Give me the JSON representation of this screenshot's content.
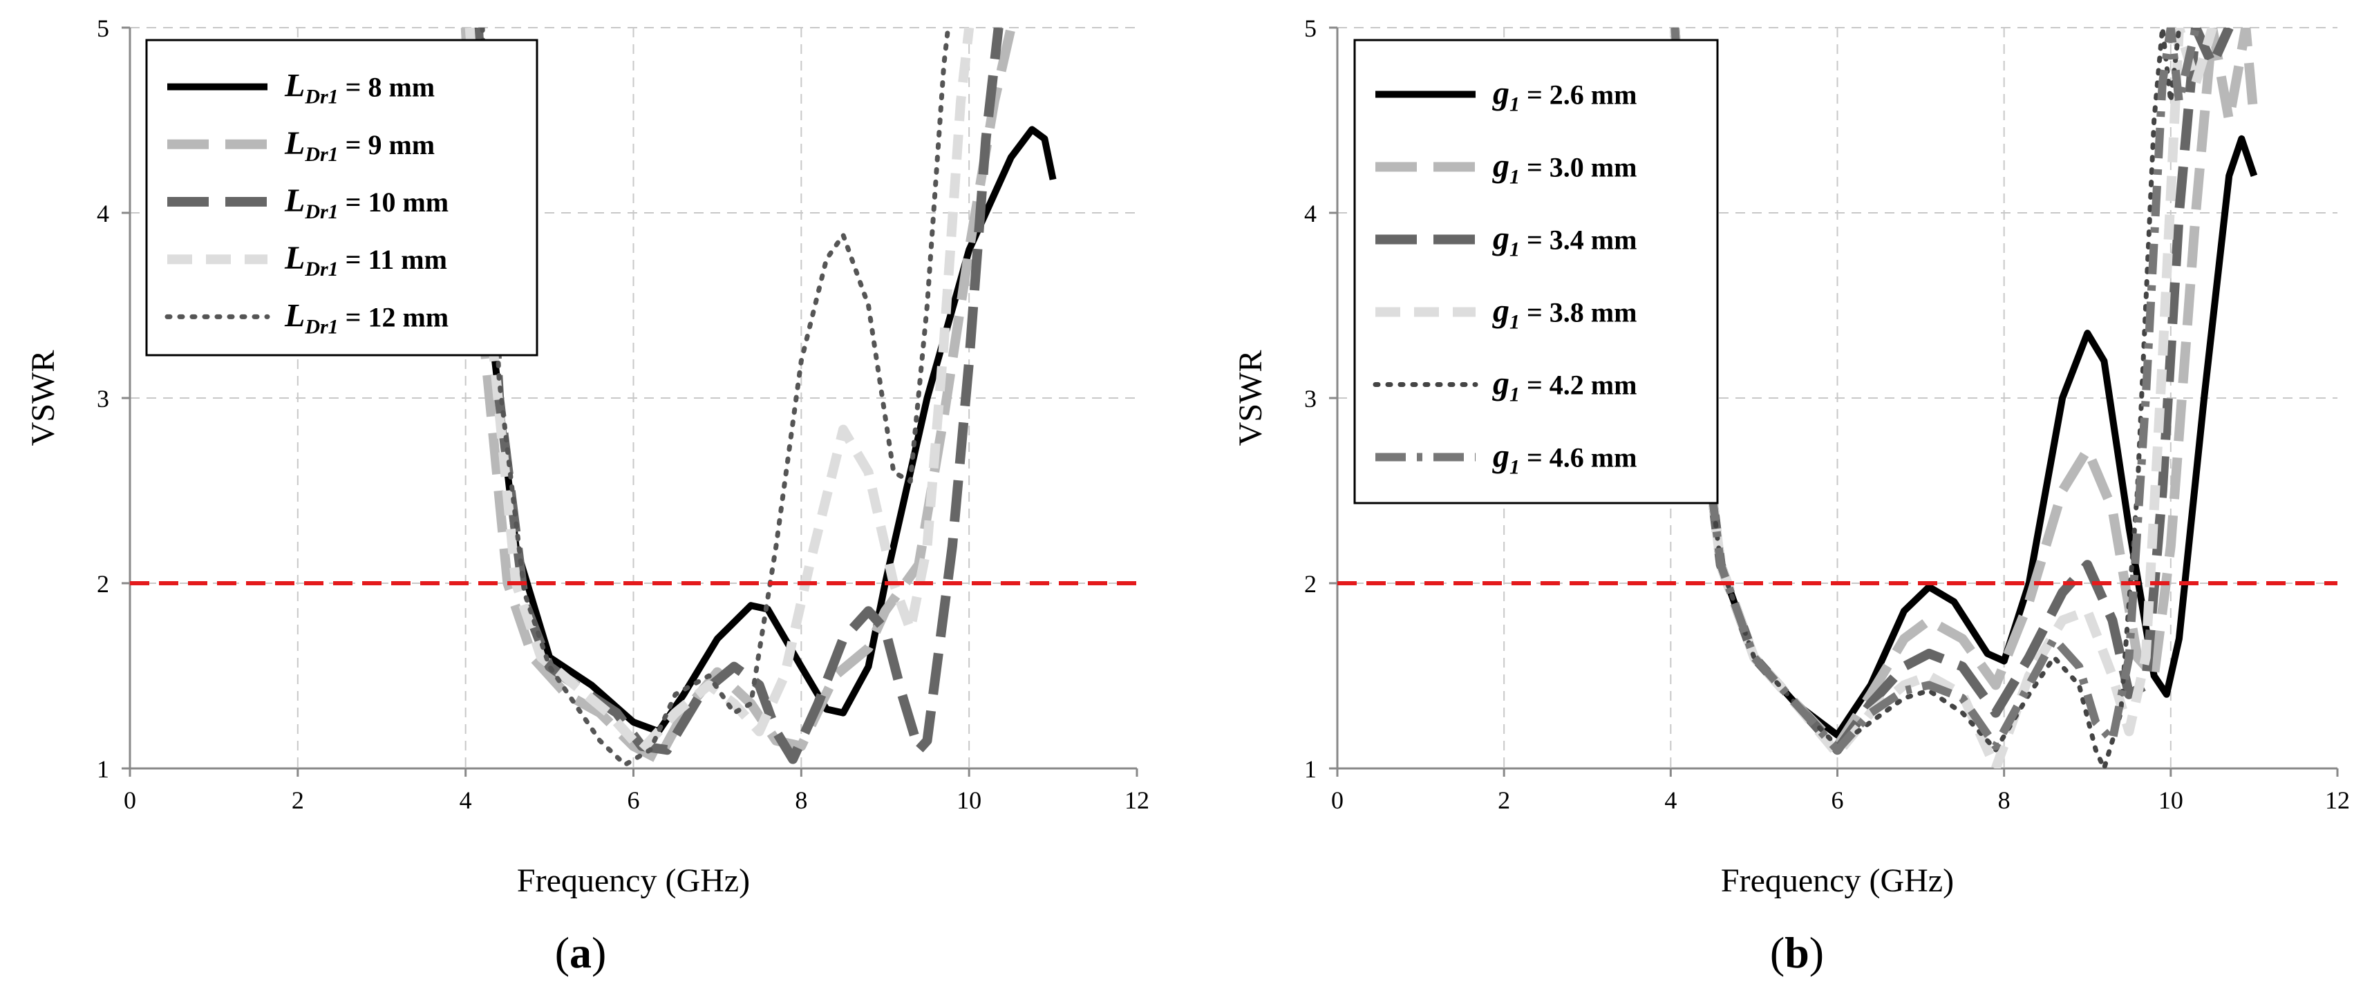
{
  "chart_data": [
    {
      "type": "line",
      "panel_label": "a",
      "xlabel": "Frequency (GHz)",
      "ylabel": "VSWR",
      "xlim": [
        0,
        12
      ],
      "ylim": [
        1,
        5
      ],
      "xticks": [
        "0",
        "2",
        "4",
        "6",
        "8",
        "10",
        "12"
      ],
      "yticks": [
        "1",
        "2",
        "3",
        "4",
        "5"
      ],
      "grid": true,
      "legend_position": "top-left",
      "threshold": {
        "y": 2,
        "color": "#e41a1c",
        "style": "dashed"
      },
      "series": [
        {
          "name": "8 mm",
          "legend_var": "L",
          "legend_sub": "Dr1",
          "color": "#000000",
          "dash": "solid",
          "points": [
            [
              4.1,
              5.0
            ],
            [
              4.3,
              3.4
            ],
            [
              4.6,
              2.2
            ],
            [
              5.0,
              1.6
            ],
            [
              5.5,
              1.45
            ],
            [
              6.0,
              1.25
            ],
            [
              6.3,
              1.2
            ],
            [
              6.6,
              1.4
            ],
            [
              7.0,
              1.7
            ],
            [
              7.4,
              1.88
            ],
            [
              7.6,
              1.86
            ],
            [
              8.0,
              1.55
            ],
            [
              8.3,
              1.32
            ],
            [
              8.5,
              1.3
            ],
            [
              8.8,
              1.55
            ],
            [
              9.0,
              2.0
            ],
            [
              9.5,
              3.0
            ],
            [
              10.0,
              3.8
            ],
            [
              10.5,
              4.3
            ],
            [
              10.75,
              4.45
            ],
            [
              10.9,
              4.4
            ],
            [
              11.0,
              4.18
            ]
          ]
        },
        {
          "name": "9 mm",
          "legend_var": "L",
          "legend_sub": "Dr1",
          "color": "#b8b8b8",
          "dash": "long",
          "points": [
            [
              4.0,
              5.0
            ],
            [
              4.2,
              3.4
            ],
            [
              4.5,
              2.0
            ],
            [
              4.8,
              1.6
            ],
            [
              5.2,
              1.4
            ],
            [
              5.6,
              1.3
            ],
            [
              6.0,
              1.12
            ],
            [
              6.3,
              1.05
            ],
            [
              6.6,
              1.3
            ],
            [
              7.0,
              1.52
            ],
            [
              7.4,
              1.35
            ],
            [
              7.7,
              1.15
            ],
            [
              8.0,
              1.12
            ],
            [
              8.4,
              1.5
            ],
            [
              8.8,
              1.65
            ],
            [
              9.0,
              1.85
            ],
            [
              9.4,
              2.1
            ],
            [
              9.7,
              2.9
            ],
            [
              10.0,
              3.8
            ],
            [
              10.3,
              4.6
            ],
            [
              10.5,
              5.0
            ]
          ]
        },
        {
          "name": "10 mm",
          "legend_var": "L",
          "legend_sub": "Dr1",
          "color": "#666666",
          "dash": "long",
          "points": [
            [
              4.15,
              5.0
            ],
            [
              4.4,
              3.0
            ],
            [
              4.7,
              1.9
            ],
            [
              5.0,
              1.55
            ],
            [
              5.4,
              1.42
            ],
            [
              5.8,
              1.3
            ],
            [
              6.1,
              1.12
            ],
            [
              6.4,
              1.1
            ],
            [
              6.8,
              1.4
            ],
            [
              7.2,
              1.55
            ],
            [
              7.5,
              1.45
            ],
            [
              7.7,
              1.2
            ],
            [
              7.9,
              1.05
            ],
            [
              8.2,
              1.35
            ],
            [
              8.5,
              1.7
            ],
            [
              8.8,
              1.85
            ],
            [
              9.0,
              1.75
            ],
            [
              9.2,
              1.4
            ],
            [
              9.4,
              1.1
            ],
            [
              9.5,
              1.15
            ],
            [
              9.8,
              2.2
            ],
            [
              10.0,
              3.2
            ],
            [
              10.2,
              4.4
            ],
            [
              10.35,
              5.0
            ]
          ]
        },
        {
          "name": "11 mm",
          "legend_var": "L",
          "legend_sub": "Dr1",
          "color": "#dddddd",
          "dash": "medium",
          "points": [
            [
              4.05,
              5.0
            ],
            [
              4.3,
              3.4
            ],
            [
              4.6,
              2.0
            ],
            [
              4.9,
              1.6
            ],
            [
              5.3,
              1.45
            ],
            [
              5.7,
              1.3
            ],
            [
              6.1,
              1.1
            ],
            [
              6.5,
              1.3
            ],
            [
              6.9,
              1.45
            ],
            [
              7.2,
              1.35
            ],
            [
              7.5,
              1.2
            ],
            [
              7.8,
              1.5
            ],
            [
              8.1,
              2.1
            ],
            [
              8.5,
              2.83
            ],
            [
              8.8,
              2.6
            ],
            [
              9.1,
              2.0
            ],
            [
              9.3,
              1.75
            ],
            [
              9.5,
              2.2
            ],
            [
              9.7,
              3.3
            ],
            [
              9.9,
              4.6
            ],
            [
              10.0,
              5.0
            ]
          ]
        },
        {
          "name": "12 mm",
          "legend_var": "L",
          "legend_sub": "Dr1",
          "color": "#555555",
          "dash": "dotted",
          "points": [
            [
              4.2,
              5.0
            ],
            [
              4.4,
              3.1
            ],
            [
              4.7,
              1.95
            ],
            [
              5.0,
              1.55
            ],
            [
              5.3,
              1.35
            ],
            [
              5.6,
              1.15
            ],
            [
              5.9,
              1.02
            ],
            [
              6.2,
              1.1
            ],
            [
              6.5,
              1.4
            ],
            [
              6.9,
              1.5
            ],
            [
              7.2,
              1.3
            ],
            [
              7.4,
              1.35
            ],
            [
              7.7,
              2.2
            ],
            [
              8.0,
              3.2
            ],
            [
              8.3,
              3.75
            ],
            [
              8.5,
              3.88
            ],
            [
              8.8,
              3.5
            ],
            [
              9.1,
              2.6
            ],
            [
              9.3,
              2.55
            ],
            [
              9.5,
              3.5
            ],
            [
              9.7,
              4.8
            ],
            [
              9.75,
              5.0
            ]
          ]
        }
      ]
    },
    {
      "type": "line",
      "panel_label": "b",
      "xlabel": "Frequency (GHz)",
      "ylabel": "VSWR",
      "xlim": [
        0,
        12
      ],
      "ylim": [
        1,
        5
      ],
      "xticks": [
        "0",
        "2",
        "4",
        "6",
        "8",
        "10",
        "12"
      ],
      "yticks": [
        "1",
        "2",
        "3",
        "4",
        "5"
      ],
      "grid": true,
      "legend_position": "top-left",
      "threshold": {
        "y": 2,
        "color": "#e41a1c",
        "style": "dashed"
      },
      "series": [
        {
          "name": "= 2.6 mm",
          "legend_var": "g",
          "legend_sub": "1",
          "color": "#000000",
          "dash": "solid",
          "points": [
            [
              4.05,
              5.0
            ],
            [
              4.3,
              3.2
            ],
            [
              4.6,
              2.1
            ],
            [
              5.0,
              1.6
            ],
            [
              5.5,
              1.35
            ],
            [
              6.0,
              1.18
            ],
            [
              6.4,
              1.45
            ],
            [
              6.8,
              1.85
            ],
            [
              7.1,
              1.98
            ],
            [
              7.4,
              1.9
            ],
            [
              7.8,
              1.62
            ],
            [
              8.0,
              1.58
            ],
            [
              8.3,
              2.0
            ],
            [
              8.7,
              3.0
            ],
            [
              9.0,
              3.35
            ],
            [
              9.2,
              3.2
            ],
            [
              9.5,
              2.3
            ],
            [
              9.8,
              1.5
            ],
            [
              9.95,
              1.4
            ],
            [
              10.1,
              1.7
            ],
            [
              10.4,
              3.0
            ],
            [
              10.7,
              4.2
            ],
            [
              10.85,
              4.4
            ],
            [
              11.0,
              4.2
            ]
          ]
        },
        {
          "name": "= 3.0 mm",
          "legend_var": "g",
          "legend_sub": "1",
          "color": "#b8b8b8",
          "dash": "long",
          "points": [
            [
              4.05,
              5.0
            ],
            [
              4.3,
              3.2
            ],
            [
              4.6,
              2.1
            ],
            [
              5.0,
              1.6
            ],
            [
              5.5,
              1.35
            ],
            [
              6.0,
              1.12
            ],
            [
              6.4,
              1.4
            ],
            [
              6.8,
              1.7
            ],
            [
              7.1,
              1.8
            ],
            [
              7.5,
              1.7
            ],
            [
              7.9,
              1.45
            ],
            [
              8.3,
              1.9
            ],
            [
              8.7,
              2.5
            ],
            [
              9.0,
              2.72
            ],
            [
              9.3,
              2.4
            ],
            [
              9.6,
              1.6
            ],
            [
              9.8,
              1.5
            ],
            [
              10.0,
              2.2
            ],
            [
              10.3,
              4.0
            ],
            [
              10.5,
              5.0
            ],
            [
              10.7,
              4.5
            ],
            [
              10.9,
              5.0
            ],
            [
              11.0,
              4.5
            ]
          ]
        },
        {
          "name": "= 3.4 mm",
          "legend_var": "g",
          "legend_sub": "1",
          "color": "#666666",
          "dash": "long",
          "points": [
            [
              4.05,
              5.0
            ],
            [
              4.3,
              3.2
            ],
            [
              4.6,
              2.1
            ],
            [
              5.0,
              1.6
            ],
            [
              5.5,
              1.35
            ],
            [
              6.0,
              1.1
            ],
            [
              6.4,
              1.35
            ],
            [
              6.8,
              1.55
            ],
            [
              7.1,
              1.62
            ],
            [
              7.5,
              1.55
            ],
            [
              7.9,
              1.3
            ],
            [
              8.3,
              1.6
            ],
            [
              8.7,
              1.95
            ],
            [
              9.0,
              2.1
            ],
            [
              9.3,
              1.8
            ],
            [
              9.5,
              1.4
            ],
            [
              9.7,
              1.45
            ],
            [
              9.9,
              2.5
            ],
            [
              10.1,
              4.0
            ],
            [
              10.3,
              5.0
            ],
            [
              10.5,
              4.8
            ],
            [
              10.7,
              5.0
            ]
          ]
        },
        {
          "name": "= 3.8 mm",
          "legend_var": "g",
          "legend_sub": "1",
          "color": "#dddddd",
          "dash": "medium",
          "points": [
            [
              4.05,
              5.0
            ],
            [
              4.3,
              3.2
            ],
            [
              4.6,
              2.1
            ],
            [
              5.0,
              1.6
            ],
            [
              5.5,
              1.35
            ],
            [
              6.0,
              1.08
            ],
            [
              6.4,
              1.3
            ],
            [
              6.8,
              1.45
            ],
            [
              7.1,
              1.5
            ],
            [
              7.5,
              1.4
            ],
            [
              7.9,
              1.0
            ],
            [
              8.3,
              1.5
            ],
            [
              8.7,
              1.8
            ],
            [
              9.0,
              1.85
            ],
            [
              9.3,
              1.5
            ],
            [
              9.5,
              1.2
            ],
            [
              9.7,
              1.6
            ],
            [
              9.9,
              3.2
            ],
            [
              10.1,
              5.0
            ],
            [
              10.3,
              4.7
            ],
            [
              10.5,
              5.0
            ]
          ]
        },
        {
          "name": "= 4.2 mm",
          "legend_var": "g",
          "legend_sub": "1",
          "color": "#444444",
          "dash": "dotted",
          "points": [
            [
              4.05,
              5.0
            ],
            [
              4.3,
              3.2
            ],
            [
              4.6,
              2.1
            ],
            [
              5.0,
              1.6
            ],
            [
              5.5,
              1.35
            ],
            [
              6.0,
              1.12
            ],
            [
              6.4,
              1.25
            ],
            [
              6.8,
              1.38
            ],
            [
              7.1,
              1.42
            ],
            [
              7.5,
              1.3
            ],
            [
              7.9,
              1.1
            ],
            [
              8.3,
              1.4
            ],
            [
              8.6,
              1.6
            ],
            [
              8.9,
              1.45
            ],
            [
              9.1,
              1.1
            ],
            [
              9.2,
              1.0
            ],
            [
              9.4,
              1.3
            ],
            [
              9.6,
              2.5
            ],
            [
              9.8,
              4.5
            ],
            [
              9.9,
              5.0
            ],
            [
              10.0,
              4.6
            ],
            [
              10.1,
              5.0
            ]
          ]
        },
        {
          "name": "= 4.6 mm",
          "legend_var": "g",
          "legend_sub": "1",
          "color": "#777777",
          "dash": "dashdot",
          "points": [
            [
              4.05,
              5.0
            ],
            [
              4.3,
              3.2
            ],
            [
              4.6,
              2.1
            ],
            [
              5.0,
              1.6
            ],
            [
              5.5,
              1.35
            ],
            [
              6.0,
              1.1
            ],
            [
              6.4,
              1.3
            ],
            [
              6.8,
              1.42
            ],
            [
              7.1,
              1.45
            ],
            [
              7.5,
              1.38
            ],
            [
              7.9,
              1.12
            ],
            [
              8.3,
              1.45
            ],
            [
              8.6,
              1.7
            ],
            [
              8.9,
              1.55
            ],
            [
              9.1,
              1.25
            ],
            [
              9.3,
              1.15
            ],
            [
              9.5,
              1.6
            ],
            [
              9.7,
              3.0
            ],
            [
              9.9,
              4.7
            ],
            [
              10.0,
              5.0
            ],
            [
              10.1,
              4.6
            ],
            [
              10.3,
              5.0
            ]
          ]
        }
      ]
    }
  ]
}
